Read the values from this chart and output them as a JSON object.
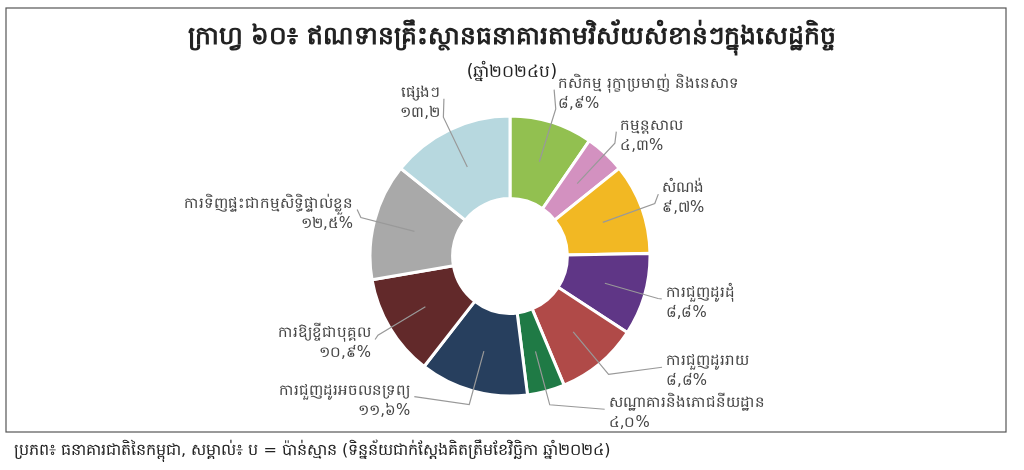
{
  "chart_data": {
    "type": "donut",
    "title": "ក្រាហ្វ ៦០៖ ឥណទានគ្រឹះស្ថានធនាគារតាមវិស័យសំខាន់ៗក្នុងសេដ្ឋកិច្ច",
    "subtitle": "(ឆ្នាំ២០២៤ប)",
    "categories": [
      "កសិកម្ម រុក្ខាប្រមាញ់ និងនេសាទ",
      "កម្មន្តសាល",
      "សំណង់",
      "ការជួញដូរដុំ",
      "ការជួញដូររាយ",
      "សណ្ឋាគារនិងភោជនីយដ្ឋាន",
      "ការជួញដូរអចលនទ្រព្យ",
      "ការឱ្យខ្ចីជាបុគ្គល",
      "ការទិញផ្ទះជាកម្មសិទ្ធិផ្ទាល់ខ្លួន",
      "ផ្សេងៗ"
    ],
    "values": [
      8.9,
      4.3,
      9.7,
      8.8,
      8.8,
      4.0,
      11.6,
      10.9,
      12.5,
      13.2
    ],
    "value_labels": [
      "៨,៩%",
      "៤,៣%",
      "៩,៧%",
      "៨,៨%",
      "៨,៨%",
      "៤,០%",
      "១១,៦%",
      "១០,៩%",
      "១២,៥%",
      "១៣,២"
    ],
    "colors": [
      "#92c050",
      "#d391c0",
      "#f2b823",
      "#5f3686",
      "#b04a48",
      "#1f7a45",
      "#273f5e",
      "#62292a",
      "#a9a9a9",
      "#b7d8df"
    ],
    "annotations": [
      "ប្រភព៖ ធនាគារជាតិនៃកម្ពុជា, សម្គាល់៖ ប = ប៉ាន់ស្មាន (ទិន្នន័យជាក់ស្តែងគិតត្រឹមខែវិច្ឆិកា ឆ្នាំ២០២៤)"
    ]
  }
}
